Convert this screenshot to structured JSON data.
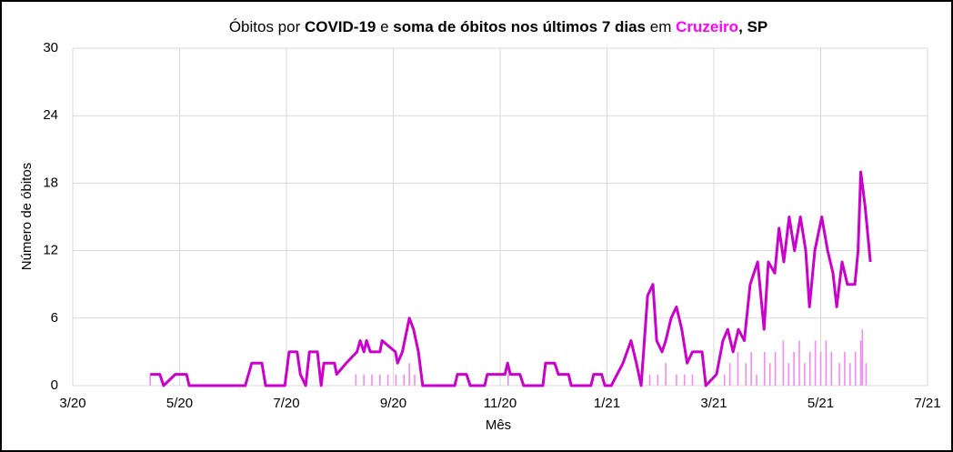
{
  "chart_data": {
    "type": "line",
    "title_parts": [
      {
        "text": "Óbitos por ",
        "weight": "normal"
      },
      {
        "text": "COVID-19",
        "weight": "bold"
      },
      {
        "text": " e ",
        "weight": "normal"
      },
      {
        "text": "soma de óbitos nos últimos 7 dias",
        "weight": "bold"
      },
      {
        "text": " em ",
        "weight": "normal"
      },
      {
        "text": "Cruzeiro",
        "weight": "bold",
        "color": "#ff00ff"
      },
      {
        "text": ", SP",
        "weight": "bold"
      }
    ],
    "xlabel": "Mês",
    "ylabel": "Número de óbitos",
    "xlim": [
      0,
      16
    ],
    "ylim": [
      0,
      30
    ],
    "xticks": [
      {
        "value": 0,
        "label": "3/20"
      },
      {
        "value": 2,
        "label": "5/20"
      },
      {
        "value": 4,
        "label": "7/20"
      },
      {
        "value": 6,
        "label": "9/20"
      },
      {
        "value": 8,
        "label": "11/20"
      },
      {
        "value": 10,
        "label": "1/21"
      },
      {
        "value": 12,
        "label": "3/21"
      },
      {
        "value": 14,
        "label": "5/21"
      },
      {
        "value": 16,
        "label": "7/21"
      }
    ],
    "yticks": [
      0,
      6,
      12,
      18,
      24,
      30
    ],
    "grid": true,
    "series": [
      {
        "kind": "bars",
        "color": "#f28cf2",
        "x": [
          1.45,
          5.3,
          5.45,
          5.6,
          5.75,
          5.9,
          6.05,
          6.2,
          6.3,
          6.4,
          8.15,
          10.65,
          10.8,
          10.95,
          11.1,
          11.3,
          11.45,
          11.6,
          12.2,
          12.3,
          12.45,
          12.6,
          12.7,
          12.8,
          12.95,
          13.05,
          13.15,
          13.3,
          13.4,
          13.5,
          13.6,
          13.7,
          13.8,
          13.9,
          14.0,
          14.1,
          14.2,
          14.35,
          14.45,
          14.55,
          14.65,
          14.75,
          14.78,
          14.85
        ],
        "values": [
          1,
          1,
          1,
          1,
          1,
          1,
          1,
          1,
          2,
          1,
          1,
          2,
          1,
          1,
          2,
          1,
          1,
          1,
          1,
          2,
          3,
          2,
          3,
          1,
          3,
          2,
          3,
          4,
          2,
          3,
          4,
          2,
          3,
          4,
          3,
          4,
          3,
          2,
          3,
          2,
          3,
          4,
          5,
          2
        ]
      },
      {
        "kind": "line",
        "color": "#cc00cc",
        "x": [
          1.45,
          1.63,
          1.7,
          1.92,
          2.13,
          2.18,
          3.23,
          3.35,
          3.54,
          3.61,
          3.97,
          4.05,
          4.2,
          4.26,
          4.36,
          4.43,
          4.58,
          4.65,
          4.7,
          4.9,
          4.94,
          5.12,
          5.32,
          5.38,
          5.45,
          5.5,
          5.57,
          5.75,
          5.79,
          6.04,
          6.08,
          6.17,
          6.3,
          6.38,
          6.47,
          6.55,
          7.15,
          7.2,
          7.37,
          7.44,
          7.71,
          7.76,
          8.09,
          8.14,
          8.19,
          8.37,
          8.44,
          8.8,
          8.85,
          9.02,
          9.09,
          9.28,
          9.33,
          9.7,
          9.75,
          9.9,
          9.96,
          10.08,
          10.3,
          10.45,
          10.55,
          10.64,
          10.7,
          10.76,
          10.86,
          10.93,
          11.03,
          11.1,
          11.2,
          11.3,
          11.4,
          11.5,
          11.6,
          11.78,
          11.85,
          12.05,
          12.17,
          12.26,
          12.36,
          12.46,
          12.57,
          12.68,
          12.82,
          12.94,
          13.02,
          13.14,
          13.22,
          13.31,
          13.41,
          13.51,
          13.62,
          13.72,
          13.79,
          13.89,
          14.02,
          14.13,
          14.23,
          14.3,
          14.4,
          14.5,
          14.64,
          14.7,
          14.75,
          14.83,
          14.93
        ],
        "values": [
          1,
          1,
          0,
          1,
          1,
          0,
          0,
          2,
          2,
          0,
          0,
          3,
          3,
          1,
          0,
          3,
          3,
          0,
          2,
          2,
          1,
          2,
          3,
          4,
          3,
          4,
          3,
          3,
          4,
          3,
          2,
          3,
          6,
          5,
          3,
          0,
          0,
          1,
          1,
          0,
          0,
          1,
          1,
          2,
          1,
          1,
          0,
          0,
          2,
          2,
          1,
          1,
          0,
          0,
          1,
          1,
          0,
          0,
          2,
          4,
          2,
          0,
          4,
          8,
          9,
          4,
          3,
          4,
          6,
          7,
          5,
          2,
          3,
          3,
          0,
          1,
          4,
          5,
          3,
          5,
          4,
          9,
          11,
          5,
          11,
          10,
          14,
          11,
          15,
          12,
          15,
          12,
          7,
          12,
          15,
          12,
          10,
          7,
          11,
          9,
          9,
          12,
          19,
          16,
          11
        ]
      }
    ]
  }
}
